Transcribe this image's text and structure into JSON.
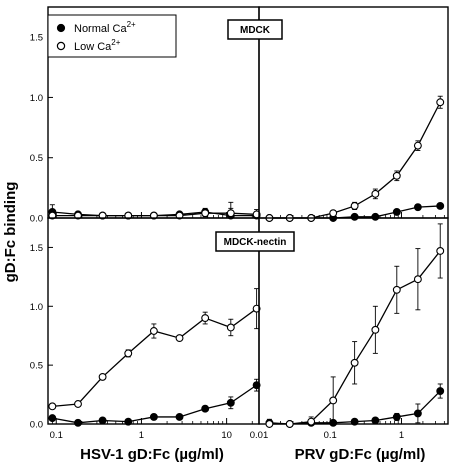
{
  "figure": {
    "y_axis_label": "gD:Fc binding",
    "legend": [
      {
        "marker": "filled",
        "label": "Normal Ca",
        "superscript": "2+"
      },
      {
        "marker": "open",
        "label": "Low Ca",
        "superscript": "2+"
      }
    ],
    "row_labels": [
      "MDCK",
      "MDCK-nectin"
    ],
    "x_axis_labels": [
      "HSV-1 gD:Fc (µg/ml)",
      "PRV gD:Fc (µg/ml)"
    ]
  },
  "chart_data": [
    {
      "type": "line",
      "cell": "MDCK",
      "xlabel": "HSV-1 gD:Fc (µg/ml)",
      "ylabel": "gD:Fc binding",
      "xscale": "log",
      "xlim": [
        0.08,
        24
      ],
      "ylim": [
        0,
        1.75
      ],
      "xticks": [
        0.1,
        1,
        10
      ],
      "yticks": [
        0.0,
        0.5,
        1.0,
        1.5
      ],
      "ytick_labels": [
        "0.0",
        "0.5",
        "1.0",
        "1.5"
      ],
      "series": [
        {
          "name": "Normal Ca2+",
          "marker": "filled",
          "x": [
            0.09,
            0.18,
            0.35,
            0.7,
            1.4,
            2.8,
            5.6,
            11.2,
            22.5
          ],
          "y": [
            0.05,
            0.03,
            0.02,
            0.02,
            0.02,
            0.03,
            0.05,
            0.02,
            0.02
          ],
          "err": [
            0.06,
            0.02,
            0.02,
            0.02,
            0.02,
            0.02,
            0.03,
            0.11,
            0.02
          ]
        },
        {
          "name": "Low Ca2+",
          "marker": "open",
          "x": [
            0.09,
            0.18,
            0.35,
            0.7,
            1.4,
            2.8,
            5.6,
            11.2,
            22.5
          ],
          "y": [
            0.02,
            0.02,
            0.02,
            0.02,
            0.02,
            0.02,
            0.04,
            0.04,
            0.03
          ],
          "err": [
            0.02,
            0.02,
            0.01,
            0.01,
            0.01,
            0.02,
            0.03,
            0.04,
            0.04
          ]
        }
      ]
    },
    {
      "type": "line",
      "cell": "MDCK",
      "xlabel": "PRV gD:Fc (µg/ml)",
      "ylabel": "gD:Fc binding",
      "xscale": "log",
      "xlim": [
        0.01,
        4.5
      ],
      "ylim": [
        0,
        1.75
      ],
      "xticks": [
        0.01,
        0.1,
        1
      ],
      "series": [
        {
          "name": "Normal Ca2+",
          "marker": "filled",
          "x": [
            0.014,
            0.027,
            0.054,
            0.11,
            0.22,
            0.43,
            0.86,
            1.7,
            3.5
          ],
          "y": [
            0.0,
            0.0,
            0.0,
            0.0,
            0.01,
            0.01,
            0.05,
            0.09,
            0.1
          ],
          "err": [
            0.01,
            0.01,
            0.01,
            0.01,
            0.01,
            0.01,
            0.02,
            0.02,
            0.02
          ]
        },
        {
          "name": "Low Ca2+",
          "marker": "open",
          "x": [
            0.014,
            0.027,
            0.054,
            0.11,
            0.22,
            0.43,
            0.86,
            1.7,
            3.5
          ],
          "y": [
            0.0,
            0.0,
            0.0,
            0.04,
            0.1,
            0.2,
            0.35,
            0.6,
            0.96
          ],
          "err": [
            0.01,
            0.01,
            0.01,
            0.02,
            0.03,
            0.04,
            0.04,
            0.04,
            0.05
          ]
        }
      ]
    },
    {
      "type": "line",
      "cell": "MDCK-nectin",
      "xlabel": "HSV-1 gD:Fc (µg/ml)",
      "ylabel": "gD:Fc binding",
      "xscale": "log",
      "xlim": [
        0.08,
        24
      ],
      "ylim": [
        0,
        1.75
      ],
      "xticks": [
        0.1,
        1,
        10
      ],
      "xtick_labels": [
        "0.1",
        "1",
        "10"
      ],
      "yticks": [
        0.0,
        0.5,
        1.0,
        1.5
      ],
      "ytick_labels": [
        "0.0",
        "0.5",
        "1.0",
        "1.5"
      ],
      "series": [
        {
          "name": "Normal Ca2+",
          "marker": "filled",
          "x": [
            0.09,
            0.18,
            0.35,
            0.7,
            1.4,
            2.8,
            5.6,
            11.2,
            22.5
          ],
          "y": [
            0.05,
            0.01,
            0.03,
            0.02,
            0.06,
            0.06,
            0.13,
            0.18,
            0.33
          ],
          "err": [
            0.02,
            0.01,
            0.01,
            0.01,
            0.01,
            0.02,
            0.02,
            0.05,
            0.05
          ]
        },
        {
          "name": "Low Ca2+",
          "marker": "open",
          "x": [
            0.09,
            0.18,
            0.35,
            0.7,
            1.4,
            2.8,
            5.6,
            11.2,
            22.5
          ],
          "y": [
            0.15,
            0.17,
            0.4,
            0.6,
            0.79,
            0.73,
            0.9,
            0.82,
            0.98
          ],
          "err": [
            0.02,
            0.01,
            0.01,
            0.03,
            0.06,
            0.01,
            0.05,
            0.07,
            0.17
          ]
        }
      ]
    },
    {
      "type": "line",
      "cell": "MDCK-nectin",
      "xlabel": "PRV gD:Fc (µg/ml)",
      "ylabel": "gD:Fc binding",
      "xscale": "log",
      "xlim": [
        0.01,
        4.5
      ],
      "ylim": [
        0,
        1.75
      ],
      "xticks": [
        0.01,
        0.1,
        1
      ],
      "xtick_labels": [
        "0.01",
        "0.1",
        "1"
      ],
      "series": [
        {
          "name": "Normal Ca2+",
          "marker": "filled",
          "x": [
            0.014,
            0.027,
            0.054,
            0.11,
            0.22,
            0.43,
            0.86,
            1.7,
            3.5
          ],
          "y": [
            0.01,
            0.0,
            0.01,
            0.01,
            0.02,
            0.03,
            0.06,
            0.09,
            0.28
          ],
          "err": [
            0.03,
            0.01,
            0.05,
            0.01,
            0.01,
            0.02,
            0.03,
            0.08,
            0.06
          ]
        },
        {
          "name": "Low Ca2+",
          "marker": "open",
          "x": [
            0.014,
            0.027,
            0.054,
            0.11,
            0.22,
            0.43,
            0.86,
            1.7,
            3.5
          ],
          "y": [
            0.0,
            0.0,
            0.02,
            0.2,
            0.52,
            0.8,
            1.14,
            1.23,
            1.47
          ],
          "err": [
            0.01,
            0.01,
            0.02,
            0.2,
            0.18,
            0.2,
            0.2,
            0.26,
            0.23
          ]
        }
      ]
    }
  ]
}
